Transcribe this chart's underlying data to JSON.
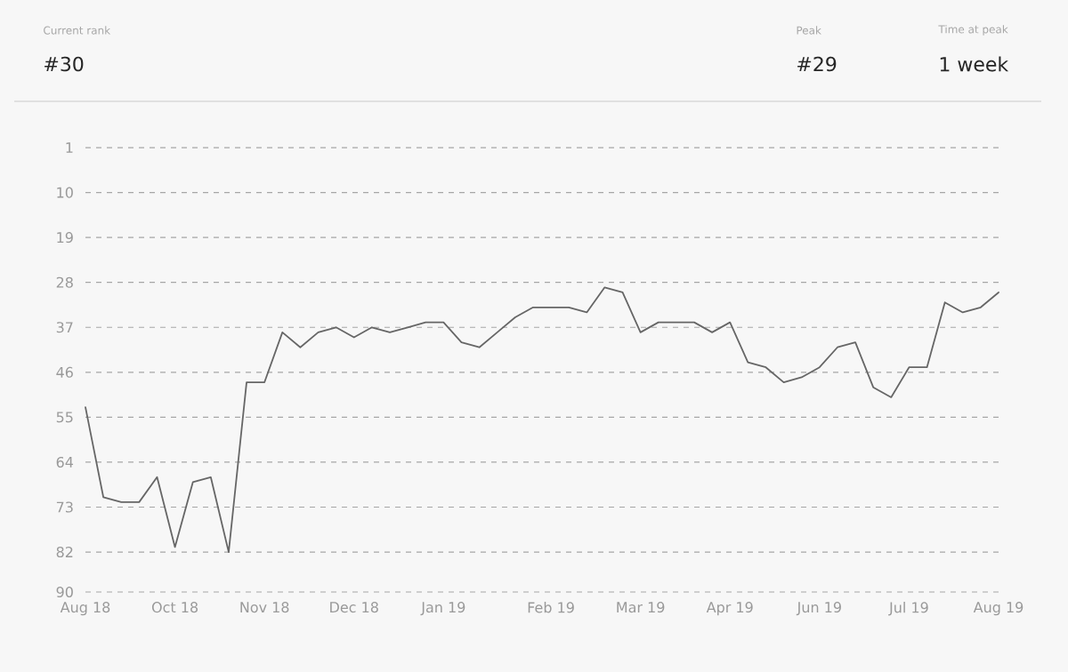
{
  "chart_data": {
    "type": "line",
    "annotations": [
      "Current rank",
      "#30",
      "Peak",
      "#29",
      "Time at peak",
      "1 week"
    ],
    "categories": [
      "Aug 18",
      null,
      null,
      null,
      null,
      "Oct 18",
      null,
      null,
      null,
      null,
      "Nov 18",
      null,
      null,
      null,
      null,
      "Dec 18",
      null,
      null,
      null,
      null,
      "Jan 19",
      null,
      null,
      null,
      null,
      null,
      "Feb 19",
      null,
      null,
      null,
      null,
      "Mar 19",
      null,
      null,
      null,
      null,
      "Apr 19",
      null,
      null,
      null,
      null,
      "Jun 19",
      null,
      null,
      null,
      null,
      "Jul 19",
      null,
      null,
      null,
      null,
      "Aug 19"
    ],
    "series": [
      {
        "color": "#666666",
        "values": [
          53,
          71,
          72,
          72,
          67,
          81,
          68,
          67,
          82,
          48,
          48,
          38,
          41,
          38,
          37,
          39,
          37,
          38,
          37,
          36,
          36,
          40,
          41,
          38,
          35,
          33,
          33,
          33,
          34,
          29,
          30,
          38,
          36,
          36,
          36,
          38,
          36,
          44,
          45,
          48,
          47,
          45,
          41,
          40,
          49,
          51,
          45,
          45,
          32,
          34,
          33,
          30
        ]
      }
    ],
    "ylim": [
      90,
      1
    ],
    "yticks": [
      1,
      10,
      19,
      28,
      37,
      46,
      55,
      64,
      73,
      82,
      90
    ],
    "grid": "y",
    "marker": "none",
    "line_style": "solid"
  }
}
